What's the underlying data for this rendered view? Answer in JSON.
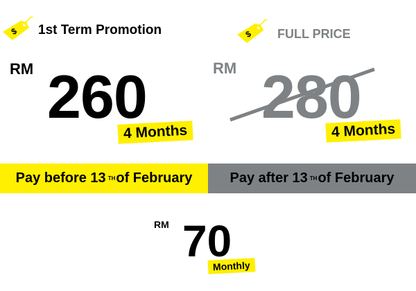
{
  "colors": {
    "accent_yellow": "#ffef00",
    "muted_gray": "#7e8285"
  },
  "promo": {
    "icon": "price-tag-icon",
    "title": "1st Term Promotion",
    "currency": "RM",
    "price": "260",
    "duration": "4 Months"
  },
  "full": {
    "icon": "price-tag-icon",
    "title": "FULL PRICE",
    "currency": "RM",
    "price": "280",
    "duration": "4 Months"
  },
  "bands": {
    "before": {
      "prefix": "Pay before 13",
      "sup": "TH",
      "suffix": "of February"
    },
    "after": {
      "prefix": "Pay after 13",
      "sup": "TH",
      "suffix": "of February"
    }
  },
  "monthly": {
    "currency": "RM",
    "price": "70",
    "label": "Monthly"
  }
}
